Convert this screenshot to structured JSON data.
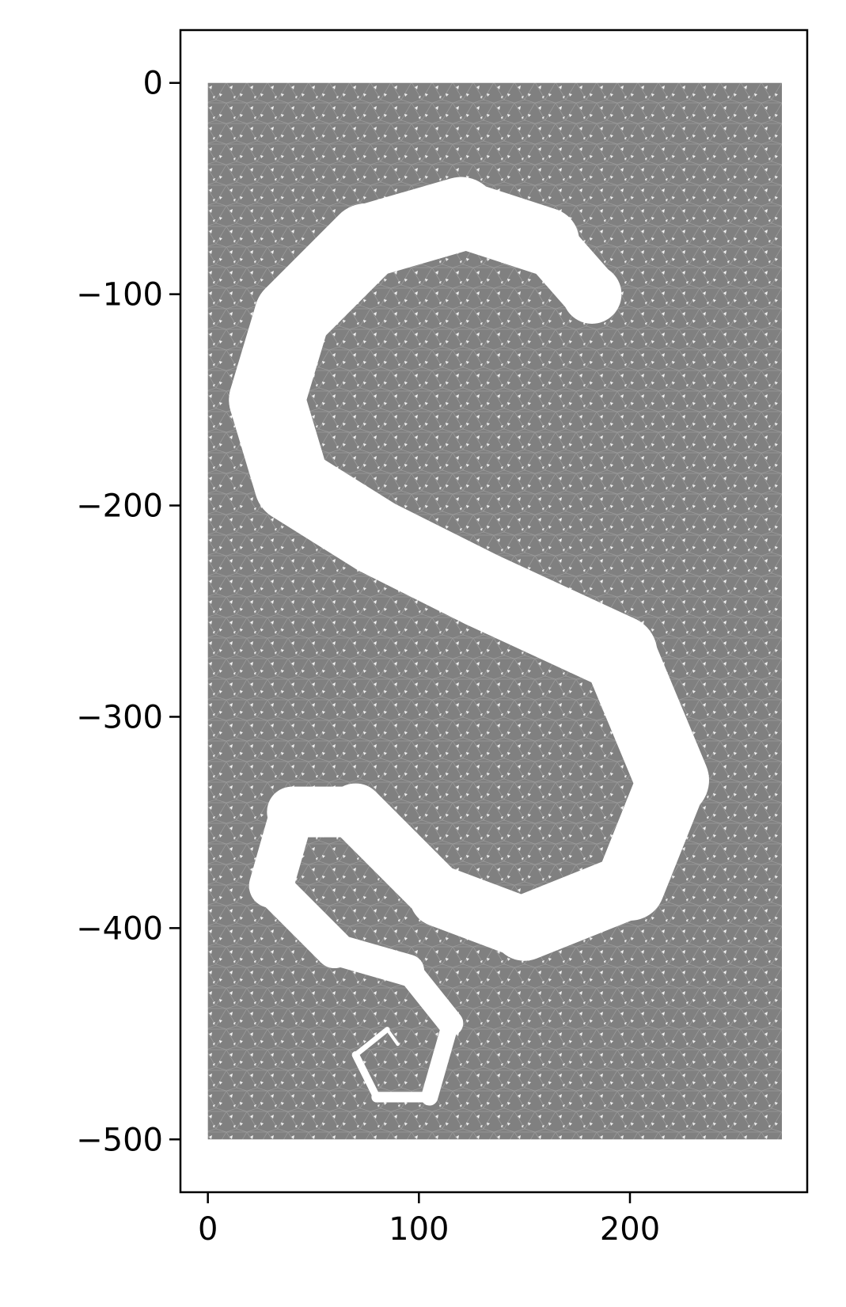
{
  "chart_data": {
    "type": "mesh",
    "title": "",
    "xlabel": "",
    "ylabel": "",
    "xlim": [
      -13,
      284
    ],
    "ylim": [
      -525,
      25
    ],
    "x_ticks": [
      0,
      100,
      200
    ],
    "y_ticks": [
      0,
      -100,
      -200,
      -300,
      -400,
      -500
    ],
    "x_tick_labels": [
      "0",
      "100",
      "200"
    ],
    "y_tick_labels": [
      "0",
      "−100",
      "−200",
      "−300",
      "−400",
      "−500"
    ],
    "grid": false,
    "legend": "none",
    "mesh": {
      "domain_x": [
        0,
        272
      ],
      "domain_y": [
        -500,
        0
      ],
      "fill_color": "#808080",
      "hole_color": "#ffffff",
      "hole_shape": "s-shaped serpent outline",
      "hole_centerline": [
        [
          182,
          -100
        ],
        [
          160,
          -75
        ],
        [
          120,
          -62
        ],
        [
          75,
          -75
        ],
        [
          40,
          -110
        ],
        [
          28,
          -150
        ],
        [
          40,
          -190
        ],
        [
          80,
          -215
        ],
        [
          130,
          -240
        ],
        [
          195,
          -270
        ],
        [
          220,
          -330
        ],
        [
          200,
          -380
        ],
        [
          150,
          -400
        ],
        [
          110,
          -385
        ],
        [
          70,
          -345
        ],
        [
          40,
          -345
        ],
        [
          30,
          -380
        ],
        [
          60,
          -410
        ],
        [
          95,
          -420
        ],
        [
          115,
          -445
        ],
        [
          105,
          -480
        ],
        [
          80,
          -480
        ],
        [
          70,
          -460
        ],
        [
          85,
          -448
        ],
        [
          90,
          -455
        ]
      ],
      "hole_widths": [
        24,
        30,
        34,
        36,
        36,
        36,
        36,
        36,
        36,
        36,
        34,
        32,
        30,
        28,
        26,
        22,
        20,
        16,
        14,
        10,
        6,
        4,
        3,
        2,
        1
      ]
    }
  }
}
